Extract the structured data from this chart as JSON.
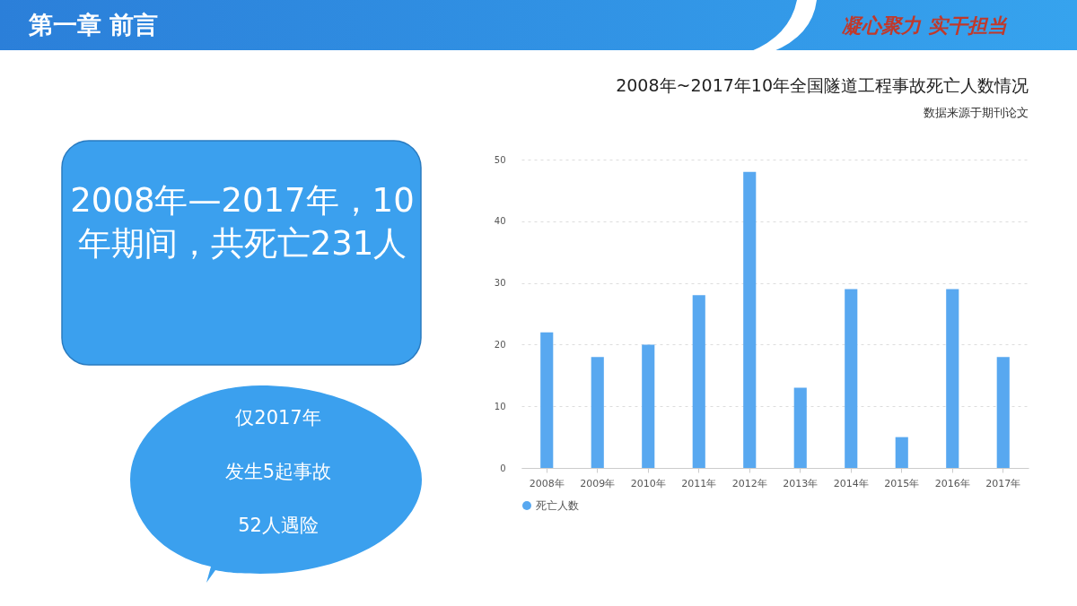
{
  "chart_data": {
    "type": "bar",
    "title": "2008年~2017年10年全国隧道工程事故死亡人数情况",
    "subtitle": "数据来源于期刊论文",
    "categories": [
      "2008年",
      "2009年",
      "2010年",
      "2011年",
      "2012年",
      "2013年",
      "2014年",
      "2015年",
      "2016年",
      "2017年"
    ],
    "series": [
      {
        "name": "死亡人数",
        "color": "#58a8f0",
        "values": [
          22,
          18,
          20,
          28,
          48,
          13,
          29,
          5,
          29,
          18
        ]
      }
    ],
    "ylim": [
      0,
      50
    ],
    "yticks": [
      0,
      10,
      20,
      30,
      40,
      50
    ],
    "grid": "y",
    "legend": "bottom",
    "annotations": [
      "第一章  前言",
      "凝心聚力  实干担当",
      "2008年—2017年，10年期间，共死亡231人",
      "仅2017年",
      "发生5起事故",
      "52人遇险"
    ]
  }
}
